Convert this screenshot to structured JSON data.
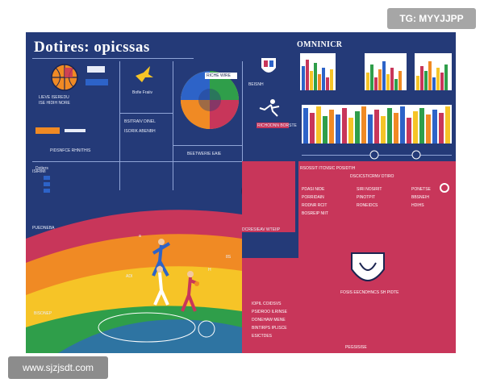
{
  "poster": {
    "title": "Dotires: opicssas",
    "panel_label": "OMNINICR",
    "court_label_1": "DCRESIEAV WTEIIP",
    "court_mark_1": "a",
    "court_mark_2": "8S",
    "court_mark_3": "H",
    "court_mark_4": "ADI",
    "bottom_caption": "FOSIS EECNDHNCS SH PIDTE",
    "left_heading": "Dotiers",
    "left_small": "PIDSNFCE RHNITHIS",
    "badge_mid": "RICHODNN BORSTE",
    "mid_label": "Bofie Fraiiv",
    "red_heading": "RSOSSIT ITCNSIC POSIDTIH",
    "red_sub": "DSCICSTICRNV DTIRO"
  },
  "watermark": {
    "top_tag": "TG: MYYJJPP",
    "site": "www.sjzjsdt.com"
  },
  "colors": {
    "navy": "#243a78",
    "red": "#c8365a",
    "orange": "#f08a24",
    "yellow": "#f6c427",
    "green": "#2f9e4a",
    "blue": "#2d63c8"
  },
  "icons": [
    "basketball-icon",
    "eagle-icon",
    "player-silhouette-icon",
    "team-crest-icon",
    "shield-icon"
  ]
}
